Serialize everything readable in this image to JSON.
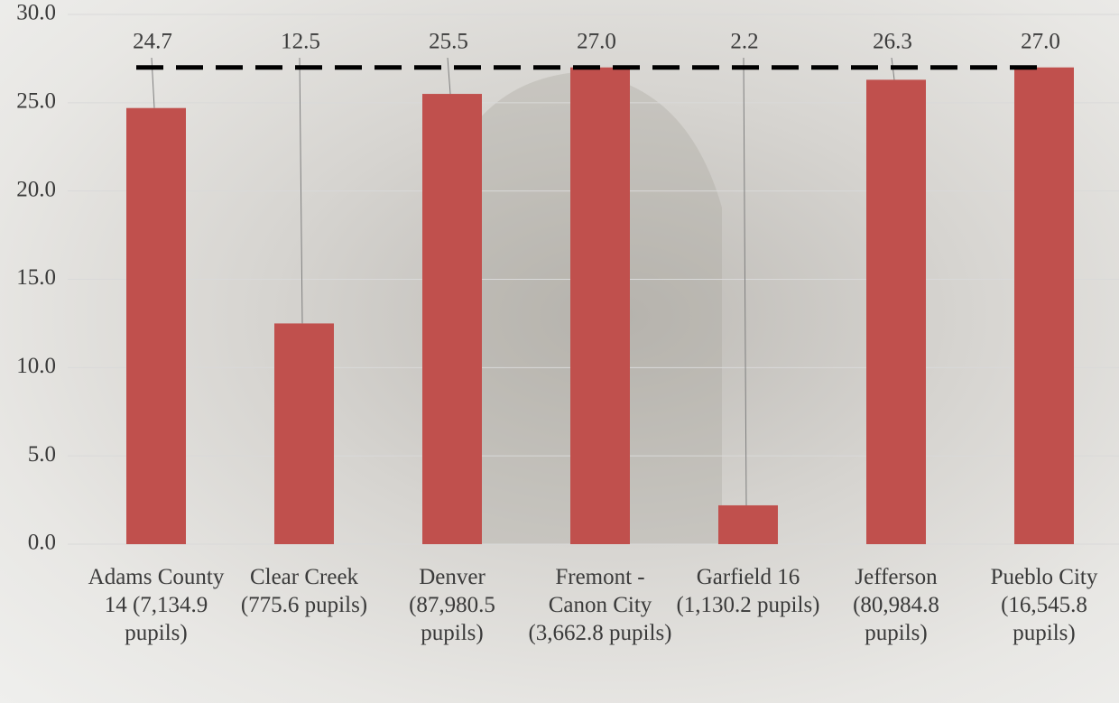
{
  "chart_data": {
    "type": "bar",
    "categories": [
      "Adams County 14 (7,134.9 pupils)",
      "Clear Creek (775.6 pupils)",
      "Denver (87,980.5 pupils)",
      "Fremont - Canon City (3,662.8 pupils)",
      "Garfield 16 (1,130.2 pupils)",
      "Jefferson (80,984.8 pupils)",
      "Pueblo City (16,545.8 pupils)"
    ],
    "values": [
      24.7,
      12.5,
      25.5,
      27.0,
      2.2,
      26.3,
      27.0
    ],
    "value_labels": [
      "24.7",
      "12.5",
      "25.5",
      "27.0",
      "2.2",
      "26.3",
      "27.0"
    ],
    "color": "#c0504d",
    "reference_line": 27.0,
    "ylim": [
      0,
      30
    ],
    "yticks": [
      {
        "value": 0,
        "label": "0.0"
      },
      {
        "value": 5,
        "label": "5.0"
      },
      {
        "value": 10,
        "label": "10.0"
      },
      {
        "value": 15,
        "label": "15.0"
      },
      {
        "value": 20,
        "label": "20.0"
      },
      {
        "value": 25,
        "label": "25.0"
      },
      {
        "value": 30,
        "label": "30.0"
      }
    ],
    "grid": true
  }
}
